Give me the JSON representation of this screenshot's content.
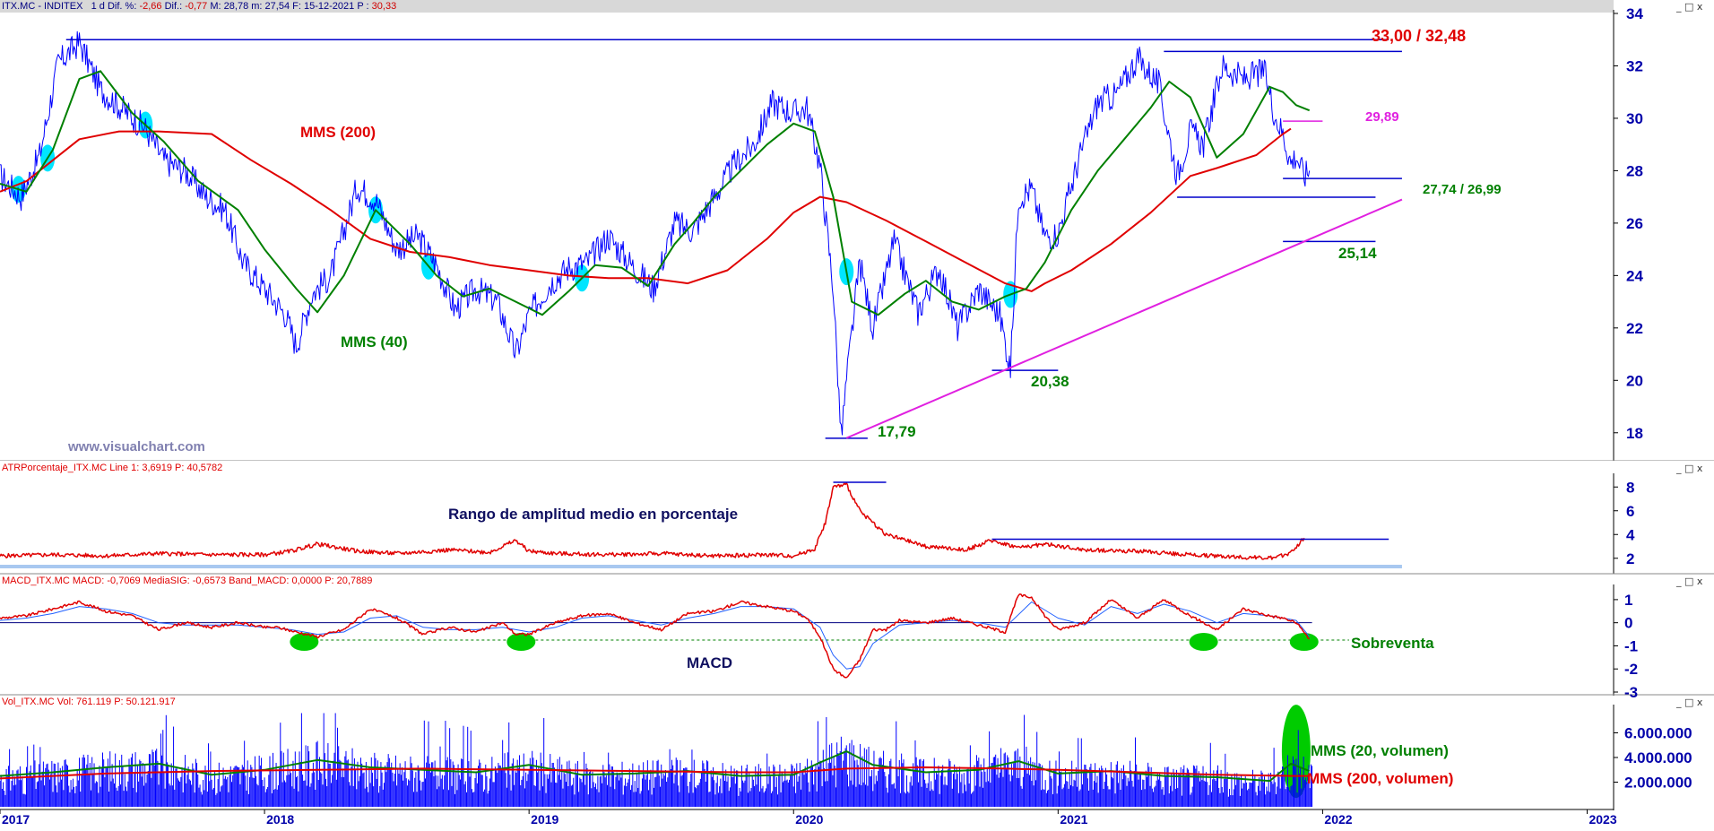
{
  "colors": {
    "price": "#0000ff",
    "mms200": "#e00000",
    "mms40": "#008000",
    "support": "#0000cc",
    "trendline": "#e020e0",
    "atr": "#e00000",
    "macd": "#e00000",
    "signal": "#2060ff",
    "oversold": "#00cc00",
    "highlight": "#00e5ff",
    "axis_text": "#0000aa",
    "watermark": "#8080b0",
    "header_bg": "#d8d8d8"
  },
  "panels": {
    "price": {
      "header": {
        "ticker": "ITX.MC - INDITEX",
        "period": "1 d",
        "diff_pct_label": "Dif. %:",
        "diff_pct": "-2,66",
        "diff_label": "Dif.:",
        "diff": "-0,77",
        "high_label": "M:",
        "high": "28,78",
        "low_label": "m:",
        "low": "27,54",
        "date_label": "F:",
        "date": "15-12-2021",
        "close_label": "P :",
        "close": "30,33"
      },
      "watermark": "www.visualchart.com",
      "labels": {
        "mms200": "MMS (200)",
        "mms40": "MMS (40)",
        "resistance": "33,00 / 32,48",
        "level_2989": "29,89",
        "level_2774": "27,74 / 26,99",
        "level_2514": "25,14",
        "level_2038": "20,38",
        "level_1779": "17,79"
      }
    },
    "atr": {
      "header": {
        "name": "ATRPorcentaje_ITX.MC",
        "line_label": "Line 1:",
        "line": "3,6919",
        "p_label": "P:",
        "p": "40,5782"
      },
      "annotation": "Rango de amplitud medio en porcentaje"
    },
    "macd": {
      "header": {
        "name": "MACD_ITX.MC",
        "macd_label": "MACD:",
        "macd": "-0,7069",
        "sig_label": "MediaSIG:",
        "sig": "-0,6573",
        "band_label": "Band_MACD:",
        "band": "0,0000",
        "p_label": "P:",
        "p": "20,7889"
      },
      "annotation_macd": "MACD",
      "annotation_oversold": "Sobreventa"
    },
    "volume": {
      "header": {
        "name": "Vol_ITX.MC",
        "vol_label": "Vol:",
        "vol": "761.119",
        "p_label": "P:",
        "p": "50.121.917"
      },
      "label_mms20": "MMS (20, volumen)",
      "label_mms200": "MMS (200, volumen)"
    }
  },
  "window_buttons": "_ □ x",
  "chart_data": [
    {
      "type": "line",
      "panel": "price",
      "ylim": [
        17,
        34
      ],
      "yticks": [
        "18",
        "20",
        "22",
        "24",
        "26",
        "28",
        "30",
        "32",
        "34"
      ],
      "xlim": [
        2017.0,
        2023.1
      ],
      "xticks": [
        "2017",
        "2018",
        "2019",
        "2020",
        "2021",
        "2022",
        "2023"
      ],
      "series": [
        {
          "name": "Precio",
          "x": [
            2017.0,
            2017.08,
            2017.15,
            2017.22,
            2017.3,
            2017.38,
            2017.47,
            2017.55,
            2017.62,
            2017.7,
            2017.78,
            2017.85,
            2017.92,
            2018.0,
            2018.08,
            2018.12,
            2018.18,
            2018.25,
            2018.35,
            2018.42,
            2018.5,
            2018.58,
            2018.65,
            2018.72,
            2018.8,
            2018.88,
            2018.95,
            2019.0,
            2019.08,
            2019.15,
            2019.22,
            2019.3,
            2019.38,
            2019.47,
            2019.55,
            2019.62,
            2019.7,
            2019.78,
            2019.85,
            2019.92,
            2020.0,
            2020.05,
            2020.1,
            2020.15,
            2020.18,
            2020.2,
            2020.25,
            2020.3,
            2020.38,
            2020.47,
            2020.55,
            2020.62,
            2020.7,
            2020.78,
            2020.82,
            2020.85,
            2020.9,
            2020.95,
            2021.0,
            2021.08,
            2021.15,
            2021.22,
            2021.3,
            2021.38,
            2021.45,
            2021.5,
            2021.55,
            2021.62,
            2021.7,
            2021.78,
            2021.82,
            2021.85,
            2021.88,
            2021.9,
            2021.93,
            2021.95
          ],
          "y": [
            27.8,
            27.0,
            28.6,
            32.1,
            32.9,
            31.1,
            30.3,
            29.6,
            28.4,
            28.0,
            27.0,
            26.5,
            24.5,
            23.5,
            22.5,
            21.3,
            23.3,
            24.0,
            27.4,
            26.9,
            25.0,
            25.5,
            24.4,
            22.7,
            23.5,
            23.0,
            21.0,
            22.5,
            23.7,
            24.3,
            24.5,
            25.5,
            24.5,
            23.5,
            26.0,
            25.7,
            27.0,
            28.3,
            29.0,
            30.6,
            30.2,
            30.4,
            28.2,
            23.5,
            17.8,
            20.0,
            24.5,
            22.0,
            25.3,
            22.6,
            24.3,
            22.0,
            23.5,
            22.5,
            20.4,
            27.0,
            27.3,
            25.5,
            25.6,
            28.5,
            30.6,
            30.9,
            32.3,
            31.3,
            27.8,
            29.5,
            29.0,
            32.0,
            31.5,
            31.8,
            30.1,
            29.4,
            28.3,
            28.6,
            27.8,
            28.0
          ]
        },
        {
          "name": "MMS (200)",
          "x": [
            2017.0,
            2017.1,
            2017.2,
            2017.3,
            2017.45,
            2017.6,
            2017.8,
            2017.95,
            2018.1,
            2018.25,
            2018.4,
            2018.55,
            2018.7,
            2018.85,
            2019.0,
            2019.15,
            2019.3,
            2019.45,
            2019.6,
            2019.75,
            2019.9,
            2020.0,
            2020.1,
            2020.2,
            2020.35,
            2020.5,
            2020.65,
            2020.8,
            2020.9,
            2020.95,
            2021.05,
            2021.2,
            2021.35,
            2021.5,
            2021.6,
            2021.75,
            2021.85,
            2021.88
          ],
          "y": [
            27.2,
            27.6,
            28.4,
            29.2,
            29.5,
            29.5,
            29.4,
            28.4,
            27.5,
            26.5,
            25.4,
            24.9,
            24.7,
            24.4,
            24.2,
            24.0,
            23.9,
            23.9,
            23.7,
            24.2,
            25.4,
            26.4,
            27.0,
            26.8,
            26.1,
            25.3,
            24.5,
            23.7,
            23.4,
            23.7,
            24.2,
            25.2,
            26.4,
            27.8,
            28.1,
            28.6,
            29.4,
            29.6
          ]
        },
        {
          "name": "MMS (40)",
          "x": [
            2017.0,
            2017.1,
            2017.2,
            2017.3,
            2017.38,
            2017.5,
            2017.62,
            2017.75,
            2017.9,
            2018.0,
            2018.12,
            2018.2,
            2018.3,
            2018.42,
            2018.55,
            2018.65,
            2018.75,
            2018.85,
            2018.95,
            2019.05,
            2019.15,
            2019.25,
            2019.35,
            2019.45,
            2019.55,
            2019.62,
            2019.7,
            2019.8,
            2019.9,
            2020.0,
            2020.08,
            2020.15,
            2020.22,
            2020.32,
            2020.42,
            2020.5,
            2020.6,
            2020.7,
            2020.8,
            2020.88,
            2020.95,
            2021.05,
            2021.15,
            2021.25,
            2021.35,
            2021.42,
            2021.5,
            2021.6,
            2021.7,
            2021.8,
            2021.85,
            2021.9,
            2021.95
          ],
          "y": [
            27.5,
            27.2,
            28.8,
            31.5,
            31.8,
            30.2,
            29.1,
            27.6,
            26.5,
            25.0,
            23.5,
            22.6,
            24.0,
            26.5,
            25.2,
            24.0,
            23.2,
            23.5,
            23.0,
            22.5,
            23.4,
            24.4,
            24.3,
            23.6,
            25.2,
            26.0,
            27.0,
            28.0,
            29.0,
            29.8,
            29.5,
            27.0,
            23.0,
            22.5,
            23.3,
            23.8,
            23.0,
            22.7,
            23.2,
            23.5,
            24.5,
            26.5,
            28.0,
            29.2,
            30.4,
            31.4,
            30.8,
            28.5,
            29.4,
            31.2,
            31.0,
            30.5,
            30.3
          ]
        }
      ],
      "h_levels": [
        {
          "y": 33.0,
          "x0": 2017.25,
          "x1": 2022.25
        },
        {
          "y": 32.55,
          "x0": 2021.4,
          "x1": 2022.3
        },
        {
          "y": 29.89,
          "x0": 2021.85,
          "x1": 2022.0
        },
        {
          "y": 27.7,
          "x0": 2021.85,
          "x1": 2022.3
        },
        {
          "y": 26.99,
          "x0": 2021.45,
          "x1": 2022.2
        },
        {
          "y": 25.3,
          "x0": 2021.85,
          "x1": 2022.2
        },
        {
          "y": 20.38,
          "x0": 2020.75,
          "x1": 2021.0
        },
        {
          "y": 17.79,
          "x0": 2020.12,
          "x1": 2020.28
        }
      ],
      "trendline": {
        "x0": 2020.2,
        "y0": 17.8,
        "x1": 2022.3,
        "y1": 26.9
      },
      "highlights_x": [
        2017.07,
        2017.18,
        2017.55,
        2018.42,
        2018.62,
        2019.2,
        2020.2,
        2020.82
      ]
    },
    {
      "type": "line",
      "panel": "atr",
      "ylim": [
        1,
        9
      ],
      "yticks": [
        "2",
        "4",
        "6",
        "8"
      ],
      "series": [
        {
          "name": "Line 1",
          "x": [
            2017.0,
            2017.2,
            2017.4,
            2017.6,
            2017.8,
            2018.0,
            2018.1,
            2018.2,
            2018.35,
            2018.5,
            2018.7,
            2018.85,
            2018.95,
            2019.0,
            2019.1,
            2019.3,
            2019.5,
            2019.7,
            2019.9,
            2020.0,
            2020.08,
            2020.12,
            2020.15,
            2020.2,
            2020.25,
            2020.35,
            2020.5,
            2020.65,
            2020.75,
            2020.85,
            2020.95,
            2021.1,
            2021.3,
            2021.5,
            2021.7,
            2021.82,
            2021.88,
            2021.93
          ],
          "y": [
            2.2,
            2.3,
            2.2,
            2.4,
            2.3,
            2.3,
            2.6,
            3.2,
            2.6,
            2.4,
            2.7,
            2.5,
            3.5,
            2.6,
            2.4,
            2.3,
            2.4,
            2.2,
            2.3,
            2.2,
            2.8,
            5.0,
            8.0,
            8.2,
            6.0,
            4.0,
            3.0,
            2.7,
            3.5,
            2.9,
            3.2,
            2.7,
            2.6,
            2.3,
            2.1,
            2.0,
            2.5,
            3.7
          ]
        }
      ],
      "h_levels": [
        {
          "y": 3.6,
          "x0": 2020.75,
          "x1": 2022.25
        },
        {
          "y": 8.4,
          "x0": 2020.15,
          "x1": 2020.35
        },
        {
          "y": 1.3,
          "x0": 2017.0,
          "x1": 2022.3
        }
      ]
    },
    {
      "type": "line",
      "panel": "macd",
      "ylim": [
        -3,
        1.5
      ],
      "yticks": [
        "1",
        "0",
        "-1",
        "-2",
        "-3"
      ],
      "series": [
        {
          "name": "MACD",
          "x": [
            2017.0,
            2017.1,
            2017.2,
            2017.3,
            2017.4,
            2017.5,
            2017.6,
            2017.7,
            2017.8,
            2017.9,
            2018.0,
            2018.05,
            2018.12,
            2018.2,
            2018.3,
            2018.4,
            2018.5,
            2018.6,
            2018.7,
            2018.8,
            2018.9,
            2018.95,
            2019.0,
            2019.1,
            2019.2,
            2019.3,
            2019.4,
            2019.5,
            2019.6,
            2019.7,
            2019.8,
            2019.9,
            2020.0,
            2020.05,
            2020.1,
            2020.15,
            2020.2,
            2020.25,
            2020.3,
            2020.35,
            2020.4,
            2020.5,
            2020.6,
            2020.7,
            2020.8,
            2020.85,
            2020.9,
            2020.95,
            2021.0,
            2021.1,
            2021.2,
            2021.3,
            2021.4,
            2021.5,
            2021.6,
            2021.7,
            2021.8,
            2021.85,
            2021.9,
            2021.95
          ],
          "y": [
            0.2,
            0.3,
            0.6,
            0.9,
            0.5,
            0.3,
            -0.3,
            0.0,
            -0.2,
            0.0,
            -0.2,
            -0.2,
            -0.4,
            -0.6,
            -0.3,
            0.6,
            0.2,
            -0.5,
            -0.2,
            -0.4,
            0.0,
            -0.5,
            -0.5,
            0.0,
            0.3,
            0.4,
            0.0,
            -0.3,
            0.4,
            0.5,
            0.9,
            0.7,
            0.5,
            0.2,
            -0.6,
            -2.0,
            -2.4,
            -1.6,
            -0.3,
            -0.3,
            0.1,
            0.0,
            0.2,
            -0.1,
            -0.4,
            1.2,
            1.1,
            0.3,
            -0.3,
            0.0,
            1.0,
            0.2,
            1.0,
            0.3,
            -0.3,
            0.6,
            0.3,
            0.2,
            0.0,
            -0.7
          ]
        },
        {
          "name": "MediaSIG",
          "x": [
            2017.0,
            2017.1,
            2017.2,
            2017.3,
            2017.4,
            2017.5,
            2017.6,
            2017.7,
            2017.8,
            2017.9,
            2018.0,
            2018.1,
            2018.2,
            2018.3,
            2018.4,
            2018.5,
            2018.6,
            2018.7,
            2018.8,
            2018.9,
            2019.0,
            2019.1,
            2019.2,
            2019.3,
            2019.4,
            2019.5,
            2019.6,
            2019.7,
            2019.8,
            2019.9,
            2020.0,
            2020.1,
            2020.15,
            2020.2,
            2020.25,
            2020.3,
            2020.4,
            2020.5,
            2020.6,
            2020.7,
            2020.8,
            2020.9,
            2021.0,
            2021.1,
            2021.2,
            2021.3,
            2021.4,
            2021.5,
            2021.6,
            2021.7,
            2021.8,
            2021.9,
            2021.95
          ],
          "y": [
            0.1,
            0.2,
            0.4,
            0.7,
            0.6,
            0.4,
            0.0,
            -0.1,
            -0.1,
            -0.1,
            -0.2,
            -0.3,
            -0.5,
            -0.4,
            0.2,
            0.3,
            -0.2,
            -0.3,
            -0.3,
            -0.2,
            -0.4,
            -0.2,
            0.2,
            0.3,
            0.1,
            -0.1,
            0.2,
            0.4,
            0.7,
            0.7,
            0.6,
            -0.2,
            -1.4,
            -2.0,
            -1.9,
            -0.9,
            -0.1,
            0.0,
            0.1,
            0.0,
            -0.2,
            0.9,
            0.2,
            -0.1,
            0.7,
            0.4,
            0.8,
            0.5,
            0.0,
            0.4,
            0.3,
            0.1,
            -0.6
          ]
        }
      ],
      "zero_line": 0,
      "oversold_level": -0.75,
      "oversold_marks_x": [
        2018.15,
        2018.97,
        2021.55,
        2021.93
      ]
    },
    {
      "type": "bar",
      "panel": "volume",
      "ylim": [
        0,
        8000000
      ],
      "yticks": [
        "2.000.000",
        "4.000.000",
        "6.000.000"
      ],
      "series": [
        {
          "name": "MMS (20, volumen)",
          "x": [
            2017.0,
            2017.2,
            2017.4,
            2017.6,
            2017.8,
            2018.0,
            2018.2,
            2018.4,
            2018.6,
            2018.8,
            2019.0,
            2019.2,
            2019.4,
            2019.6,
            2019.8,
            2020.0,
            2020.1,
            2020.2,
            2020.3,
            2020.5,
            2020.7,
            2020.85,
            2021.0,
            2021.2,
            2021.4,
            2021.6,
            2021.8,
            2021.88,
            2021.95
          ],
          "y": [
            2500000,
            2800000,
            3200000,
            3500000,
            2600000,
            3000000,
            3800000,
            3200000,
            3000000,
            2800000,
            3400000,
            2600000,
            2700000,
            2900000,
            2500000,
            2600000,
            3600000,
            4500000,
            3400000,
            2800000,
            3000000,
            3700000,
            2700000,
            2900000,
            2500000,
            2400000,
            2100000,
            3500000,
            2900000
          ]
        },
        {
          "name": "MMS (200, volumen)",
          "x": [
            2017.0,
            2017.4,
            2017.8,
            2018.2,
            2018.6,
            2019.0,
            2019.4,
            2019.8,
            2020.0,
            2020.2,
            2020.5,
            2020.8,
            2021.0,
            2021.3,
            2021.6,
            2021.9,
            2021.95
          ],
          "y": [
            2300000,
            2700000,
            2900000,
            3000000,
            3100000,
            3000000,
            2900000,
            2800000,
            2800000,
            3100000,
            3200000,
            3100000,
            3000000,
            2800000,
            2600000,
            2500000,
            2500000
          ]
        }
      ],
      "oversold_ellipse_x": 2021.9
    }
  ]
}
